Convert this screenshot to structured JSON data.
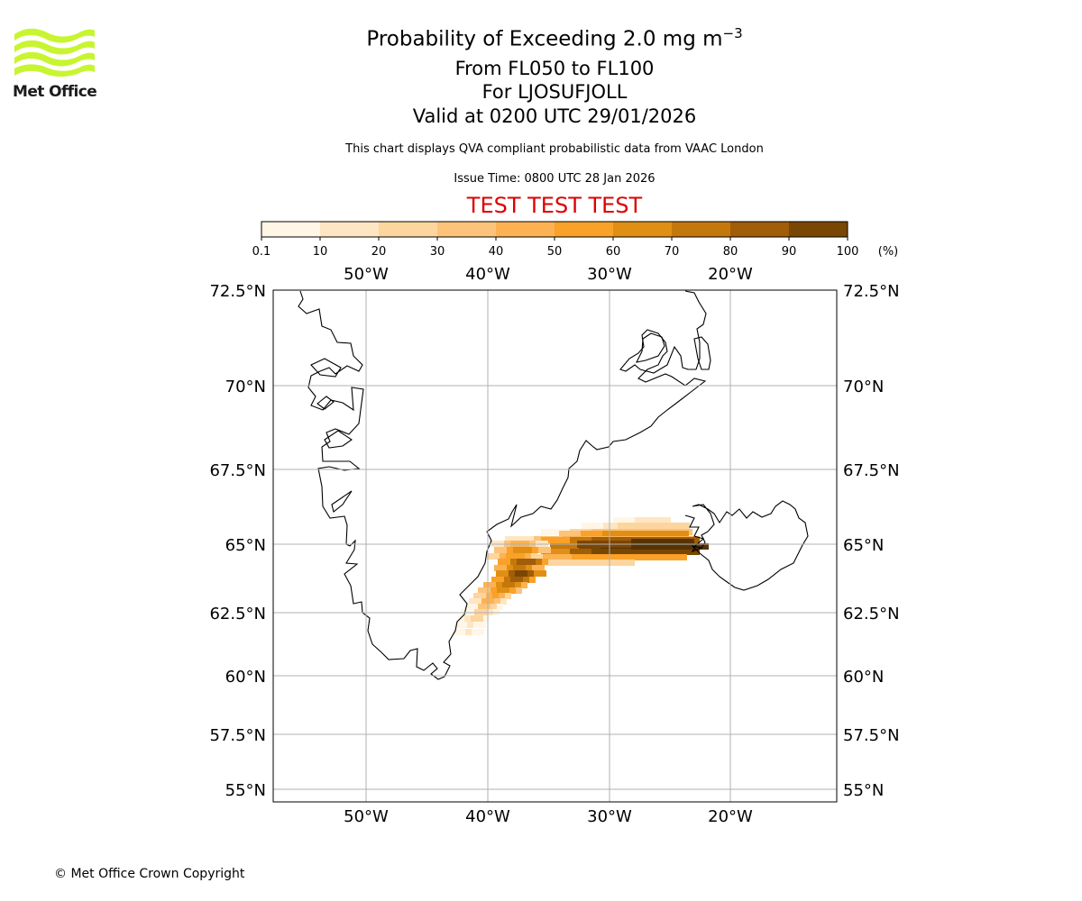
{
  "logo": {
    "text": "Met Office",
    "icon": "met-office-wave-logo",
    "color": "#c8f530"
  },
  "title": {
    "main": "Probability of Exceeding 2.0 mg m",
    "exponent": "−3",
    "flight_levels": "From FL050 to FL100",
    "location": "For LJOSUFJOLL",
    "valid": "Valid at 0200 UTC 29/01/2026"
  },
  "description": "This chart displays QVA compliant probabilistic data from VAAC London",
  "issue_time": "Issue Time: 0800 UTC 28 Jan 2026",
  "test_banner": "TEST TEST TEST",
  "colorbar": {
    "ticks": [
      "0.1",
      "10",
      "20",
      "30",
      "40",
      "50",
      "60",
      "70",
      "80",
      "90",
      "100"
    ],
    "unit": "(%)",
    "colors": [
      "#fff6e6",
      "#fee6c3",
      "#fdd59e",
      "#fdc37a",
      "#fcb253",
      "#f9a128",
      "#e08f14",
      "#c4780c",
      "#a15d07",
      "#7a4603",
      "#573304"
    ]
  },
  "map": {
    "lon_labels": [
      "50°W",
      "40°W",
      "30°W",
      "20°W"
    ],
    "lat_labels": [
      "72.5°N",
      "70°N",
      "67.5°N",
      "65°N",
      "62.5°N",
      "60°N",
      "57.5°N",
      "55°N"
    ],
    "gridline_color": "#b0b0b0",
    "coastline_color": "#000000",
    "plume_source": "LJOSUFJOLL"
  },
  "copyright": "© Met Office Crown Copyright"
}
